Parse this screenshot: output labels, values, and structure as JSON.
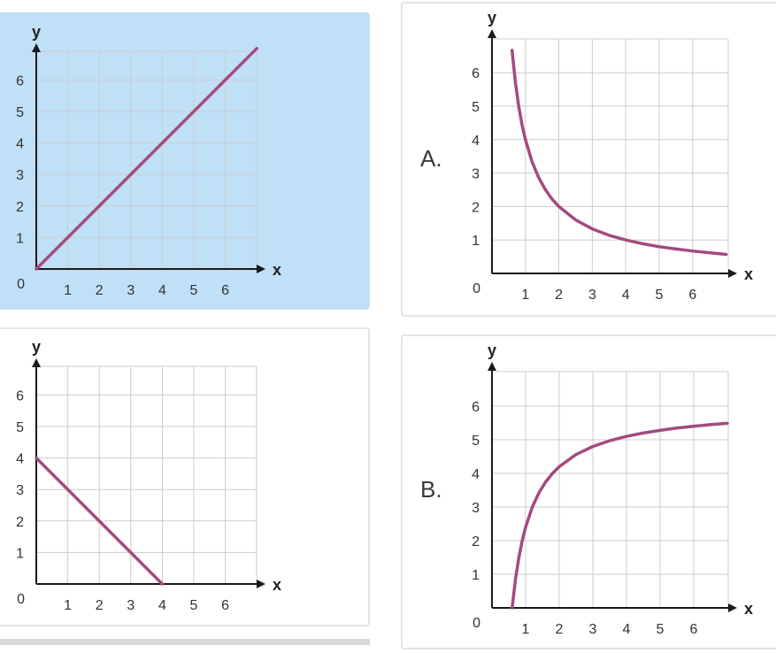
{
  "colors": {
    "curve": "#a44a7e",
    "axis": "#1a1a1a",
    "grid": "#cccccc",
    "selected_bg": "#bfe0f7",
    "card_border": "#e3e3e3"
  },
  "options": [
    {
      "letter": "",
      "selected": true
    },
    {
      "letter": "A.",
      "selected": false
    },
    {
      "letter": "",
      "selected": false
    },
    {
      "letter": "B.",
      "selected": false
    }
  ],
  "chart_data": [
    {
      "type": "line",
      "title": "",
      "xlabel": "x",
      "ylabel": "y",
      "origin_label": "0",
      "x_ticks": [
        1,
        2,
        3,
        4,
        5,
        6
      ],
      "y_ticks": [
        1,
        2,
        3,
        4,
        5,
        6
      ],
      "xlim": [
        0,
        7
      ],
      "ylim": [
        0,
        7
      ],
      "grid": true,
      "series": [
        {
          "x": [
            0,
            7
          ],
          "y": [
            0,
            7
          ]
        }
      ]
    },
    {
      "type": "line",
      "title": "",
      "xlabel": "x",
      "ylabel": "y",
      "origin_label": "0",
      "x_ticks": [
        1,
        2,
        3,
        4,
        5,
        6
      ],
      "y_ticks": [
        1,
        2,
        3,
        4,
        5,
        6
      ],
      "xlim": [
        0,
        7
      ],
      "ylim": [
        0,
        7
      ],
      "grid": true,
      "series": [
        {
          "x": [
            0.6,
            0.7,
            0.8,
            0.9,
            1,
            1.2,
            1.4,
            1.6,
            1.8,
            2,
            2.5,
            3,
            3.5,
            4,
            4.5,
            5,
            5.5,
            6,
            6.5,
            7
          ],
          "y": [
            6.67,
            5.71,
            5,
            4.44,
            4,
            3.33,
            2.86,
            2.5,
            2.22,
            2,
            1.6,
            1.33,
            1.14,
            1,
            0.89,
            0.8,
            0.73,
            0.67,
            0.62,
            0.57
          ]
        }
      ]
    },
    {
      "type": "line",
      "title": "",
      "xlabel": "x",
      "ylabel": "y",
      "origin_label": "0",
      "x_ticks": [
        1,
        2,
        3,
        4,
        5,
        6
      ],
      "y_ticks": [
        1,
        2,
        3,
        4,
        5,
        6
      ],
      "xlim": [
        0,
        7
      ],
      "ylim": [
        0,
        7
      ],
      "grid": true,
      "series": [
        {
          "x": [
            0,
            4
          ],
          "y": [
            4,
            0
          ]
        }
      ]
    },
    {
      "type": "line",
      "title": "",
      "xlabel": "x",
      "ylabel": "y",
      "origin_label": "0",
      "x_ticks": [
        1,
        2,
        3,
        4,
        5,
        6
      ],
      "y_ticks": [
        1,
        2,
        3,
        4,
        5,
        6
      ],
      "xlim": [
        0,
        7
      ],
      "ylim": [
        0,
        7
      ],
      "grid": true,
      "series": [
        {
          "x": [
            0.6,
            0.7,
            0.8,
            0.9,
            1,
            1.2,
            1.4,
            1.6,
            1.8,
            2,
            2.5,
            3,
            3.5,
            4,
            4.5,
            5,
            5.5,
            6,
            6.5,
            7
          ],
          "y": [
            0,
            0.86,
            1.5,
            2,
            2.4,
            3,
            3.43,
            3.75,
            4,
            4.2,
            4.56,
            4.8,
            4.97,
            5.1,
            5.2,
            5.28,
            5.35,
            5.4,
            5.45,
            5.49
          ]
        }
      ]
    }
  ]
}
